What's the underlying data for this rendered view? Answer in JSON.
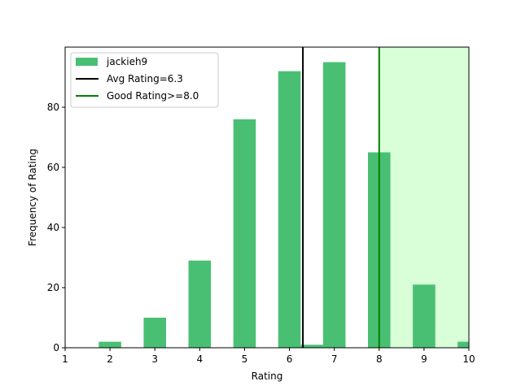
{
  "chart_data": {
    "type": "bar",
    "xlabel": "Rating",
    "ylabel": "Frequency of Rating",
    "xlim": [
      1,
      10
    ],
    "ylim": [
      0,
      100
    ],
    "xticks": [
      1,
      2,
      3,
      4,
      5,
      6,
      7,
      8,
      9,
      10
    ],
    "yticks": [
      0,
      20,
      40,
      60,
      80
    ],
    "grid": false,
    "legend_position": "top-left",
    "bar_width": 0.5,
    "series": [
      {
        "name": "jackieh9",
        "color": "#49bf73",
        "bars": [
          {
            "x": 2,
            "value": 2
          },
          {
            "x": 3,
            "value": 10
          },
          {
            "x": 4,
            "value": 29
          },
          {
            "x": 5,
            "value": 76
          },
          {
            "x": 6,
            "value": 92
          },
          {
            "x": 6.5,
            "value": 1
          },
          {
            "x": 7,
            "value": 95
          },
          {
            "x": 8,
            "value": 65
          },
          {
            "x": 9,
            "value": 21
          },
          {
            "x": 10,
            "value": 2
          }
        ]
      }
    ],
    "reference_lines": [
      {
        "name": "Avg Rating=6.3",
        "x": 6.3,
        "color": "#000000"
      },
      {
        "name": "Good Rating>=8.0",
        "x": 8.0,
        "color": "#008000"
      }
    ],
    "shaded_region": {
      "x_from": 8.0,
      "x_to": 10,
      "color": "#d8ffd8"
    }
  }
}
